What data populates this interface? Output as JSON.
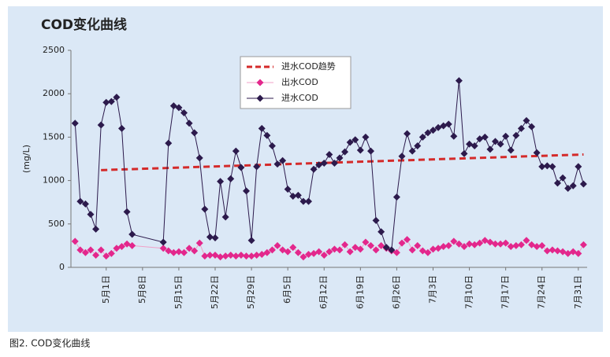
{
  "chart_data": {
    "type": "line",
    "title": "COD变化曲线",
    "y_label": "(mg/L)",
    "ylim": [
      0,
      2500
    ],
    "yticks": [
      0,
      500,
      1000,
      1500,
      2000,
      2500
    ],
    "xlim": [
      114.2,
      213.7
    ],
    "xticks": [
      {
        "value": 121,
        "label": "5月1日"
      },
      {
        "value": 128,
        "label": "5月8日"
      },
      {
        "value": 135,
        "label": "5月15日"
      },
      {
        "value": 142,
        "label": "5月22日"
      },
      {
        "value": 149,
        "label": "5月29日"
      },
      {
        "value": 156,
        "label": "6月5日"
      },
      {
        "value": 163,
        "label": "6月12日"
      },
      {
        "value": 170,
        "label": "6月19日"
      },
      {
        "value": 177,
        "label": "6月26日"
      },
      {
        "value": 184,
        "label": "7月3日"
      },
      {
        "value": 191,
        "label": "7月10日"
      },
      {
        "value": 198,
        "label": "7月17日"
      },
      {
        "value": 205,
        "label": "7月24日"
      },
      {
        "value": 212,
        "label": "7月31日"
      }
    ],
    "grid": false,
    "legend": "upper center",
    "series": [
      {
        "name": "进水COD趋势",
        "color": "#d42a2a",
        "style": "dashed",
        "x": [
          120,
          213
        ],
        "values": [
          1120,
          1300
        ]
      },
      {
        "name": "出水COD",
        "color": "#e3278c",
        "line_color": "#f0a0c8",
        "style": "diamond",
        "x": [
          115,
          116,
          117,
          118,
          119,
          120,
          121,
          122,
          123,
          124,
          125,
          126,
          132,
          133,
          134,
          135,
          136,
          137,
          138,
          139,
          140,
          141,
          142,
          143,
          144,
          145,
          146,
          147,
          148,
          149,
          150,
          151,
          152,
          153,
          154,
          155,
          156,
          157,
          158,
          159,
          160,
          161,
          162,
          163,
          164,
          165,
          166,
          167,
          168,
          169,
          170,
          171,
          172,
          173,
          174,
          175,
          176,
          177,
          178,
          179,
          180,
          181,
          182,
          183,
          184,
          185,
          186,
          187,
          188,
          189,
          190,
          191,
          192,
          193,
          194,
          195,
          196,
          197,
          198,
          199,
          200,
          201,
          202,
          203,
          204,
          205,
          206,
          207,
          208,
          209,
          210,
          211,
          212,
          213
        ],
        "values": [
          300,
          200,
          170,
          200,
          140,
          200,
          130,
          160,
          220,
          240,
          270,
          250,
          220,
          190,
          170,
          180,
          170,
          220,
          190,
          280,
          130,
          140,
          140,
          120,
          130,
          140,
          130,
          140,
          130,
          130,
          140,
          150,
          170,
          200,
          250,
          200,
          180,
          230,
          170,
          120,
          150,
          160,
          180,
          140,
          180,
          210,
          200,
          260,
          180,
          230,
          210,
          290,
          250,
          200,
          250,
          220,
          190,
          170,
          280,
          320,
          200,
          250,
          190,
          170,
          210,
          220,
          240,
          250,
          300,
          270,
          240,
          270,
          260,
          280,
          310,
          290,
          270,
          270,
          280,
          240,
          250,
          260,
          310,
          260,
          240,
          250,
          190,
          200,
          190,
          180,
          160,
          180,
          160,
          260
        ]
      },
      {
        "name": "进水COD",
        "color": "#2c1a4c",
        "line_color": "#2c1a4c",
        "style": "diamond",
        "x": [
          115,
          116,
          117,
          118,
          119,
          120,
          121,
          122,
          123,
          124,
          125,
          126,
          132,
          133,
          134,
          135,
          136,
          137,
          138,
          139,
          140,
          141,
          142,
          143,
          144,
          145,
          146,
          147,
          148,
          149,
          150,
          151,
          152,
          153,
          154,
          155,
          156,
          157,
          158,
          159,
          160,
          161,
          162,
          163,
          164,
          165,
          166,
          167,
          168,
          169,
          170,
          171,
          172,
          173,
          174,
          175,
          176,
          177,
          178,
          179,
          180,
          181,
          182,
          183,
          184,
          185,
          186,
          187,
          188,
          189,
          190,
          191,
          192,
          193,
          194,
          195,
          196,
          197,
          198,
          199,
          200,
          201,
          202,
          203,
          204,
          205,
          206,
          207,
          208,
          209,
          210,
          211,
          212,
          213
        ],
        "values": [
          1660,
          760,
          730,
          610,
          440,
          1640,
          1900,
          1910,
          1960,
          1600,
          640,
          380,
          290,
          1430,
          1860,
          1840,
          1780,
          1660,
          1550,
          1260,
          670,
          350,
          340,
          990,
          580,
          1020,
          1340,
          1150,
          880,
          310,
          1160,
          1600,
          1520,
          1400,
          1190,
          1230,
          900,
          820,
          830,
          760,
          760,
          1130,
          1180,
          1200,
          1300,
          1200,
          1260,
          1330,
          1440,
          1470,
          1350,
          1500,
          1340,
          540,
          410,
          230,
          200,
          810,
          1280,
          1540,
          1340,
          1400,
          1500,
          1550,
          1580,
          1610,
          1630,
          1650,
          1510,
          2150,
          1310,
          1420,
          1400,
          1480,
          1500,
          1360,
          1450,
          1420,
          1510,
          1350,
          1520,
          1600,
          1690,
          1620,
          1320,
          1160,
          1170,
          1160,
          970,
          1030,
          910,
          940,
          1160,
          960
        ]
      }
    ]
  },
  "caption": "图2. COD变化曲线"
}
